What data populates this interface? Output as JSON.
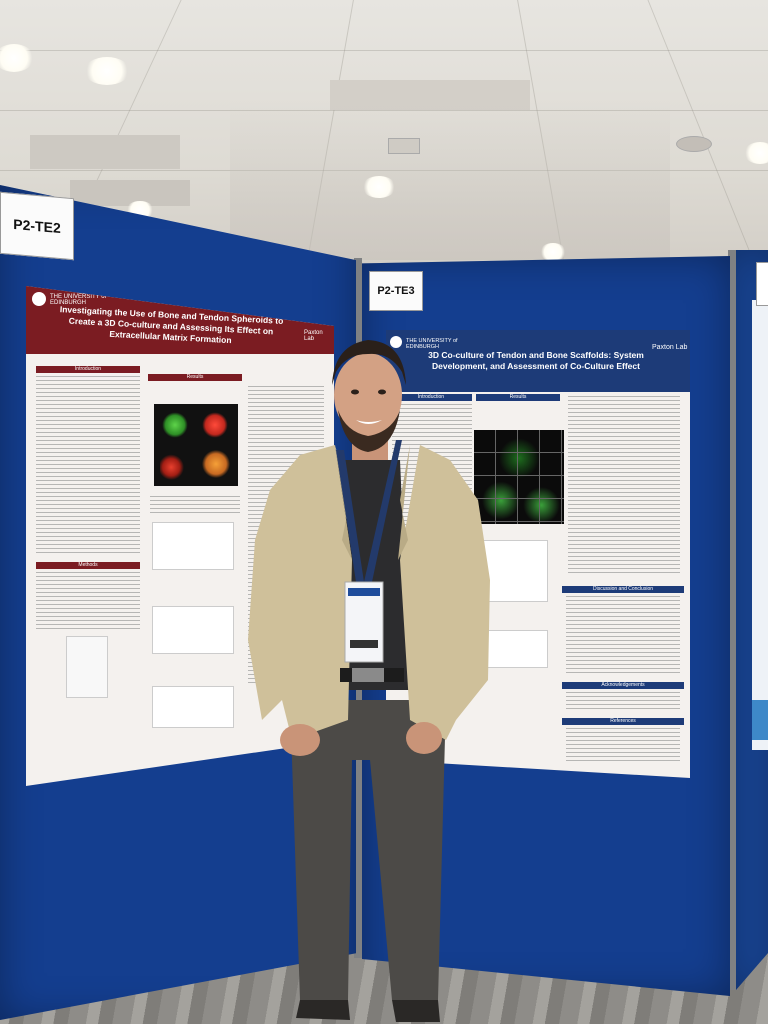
{
  "board_labels": {
    "left": "P2-TE2",
    "middle": "P2-TE3"
  },
  "poster_left": {
    "institution": "THE UNIVERSITY of EDINBURGH",
    "title": "Investigating the Use of Bone and Tendon Spheroids to Create a 3D Co-culture and Assessing Its Effect on Extracellular Matrix Formation",
    "lab_logo": "Paxton Lab",
    "sections": [
      "Introduction",
      "Results",
      "Methods"
    ]
  },
  "poster_right": {
    "institution": "THE UNIVERSITY of EDINBURGH",
    "title": "3D Co-culture of Tendon and Bone Scaffolds: System Development, and Assessment of Co-Culture Effect",
    "lab_logo": "Paxton Lab",
    "sections": [
      "Introduction",
      "Results",
      "Discussion and Conclusion",
      "Acknowledgements",
      "References"
    ]
  },
  "colors": {
    "board": "#143e8f",
    "poster_left_header": "#7b1c22",
    "poster_right_header": "#1d3b78",
    "jacket": "#cfc09a"
  }
}
